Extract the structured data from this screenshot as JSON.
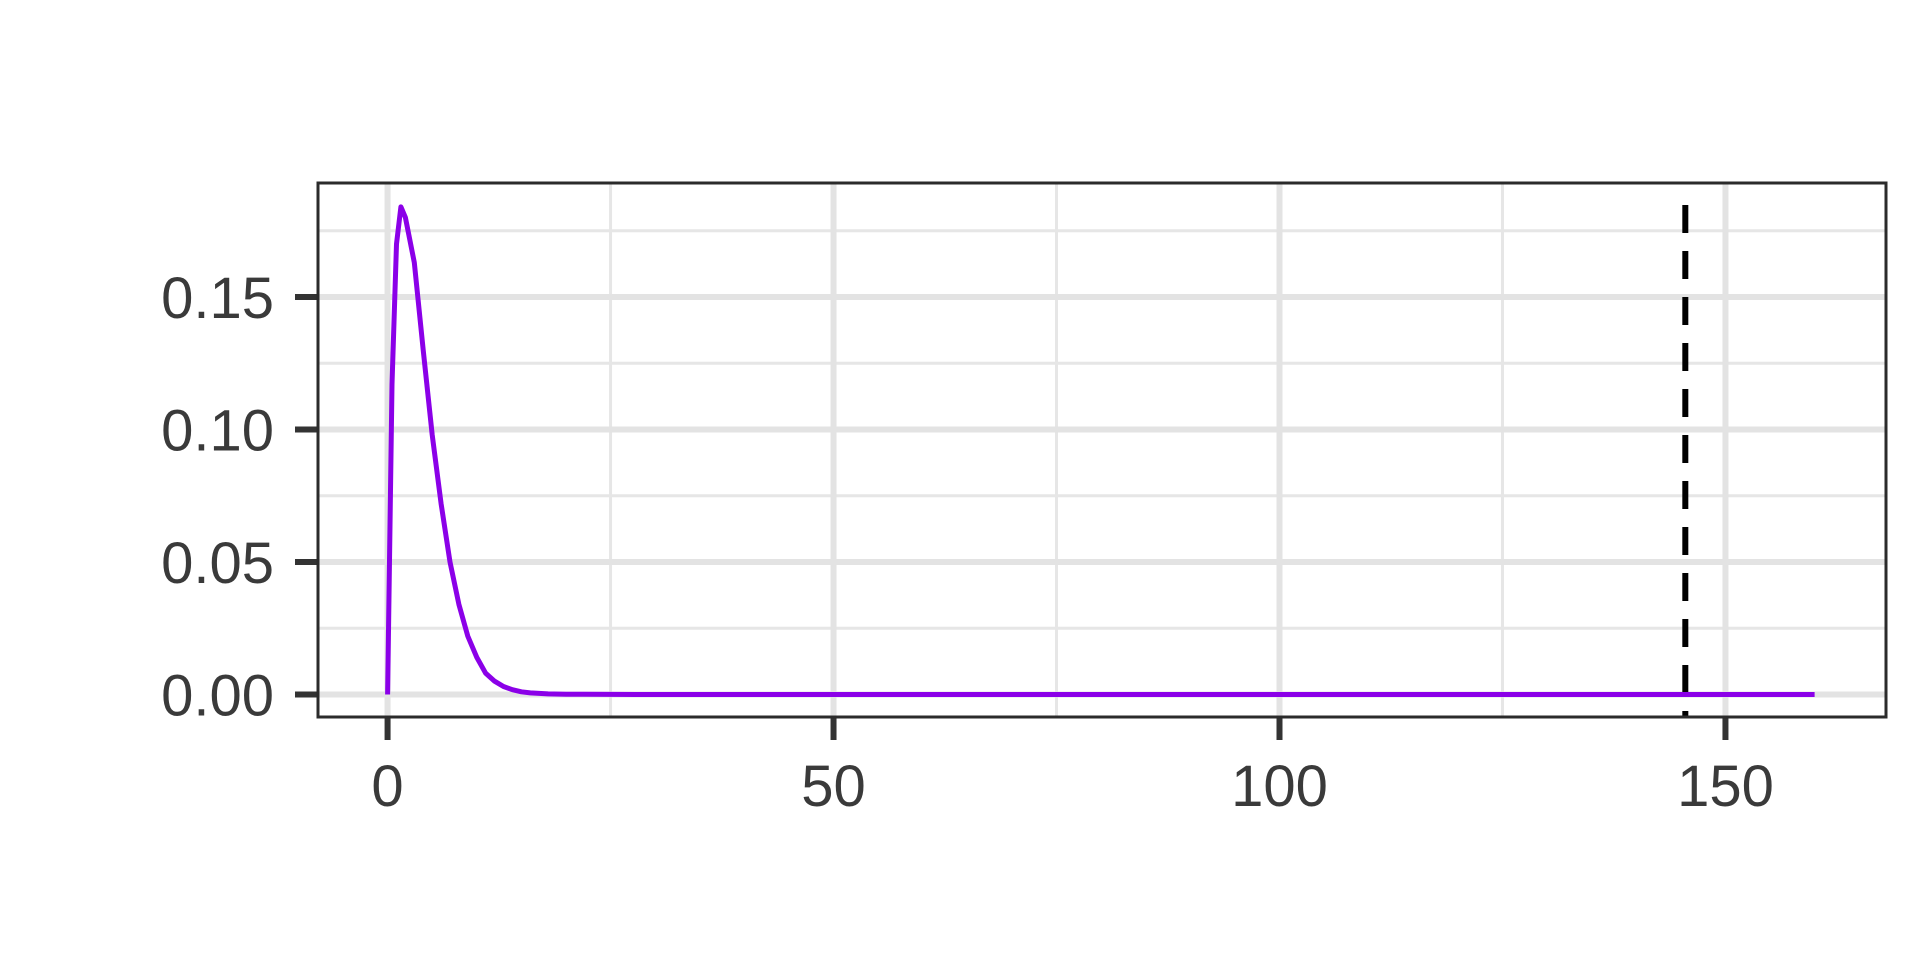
{
  "chart_data": {
    "type": "line",
    "title": "",
    "xlabel": "",
    "ylabel": "",
    "xlim": [
      -7.8,
      168
    ],
    "ylim": [
      -0.0085,
      0.193
    ],
    "x_ticks": [
      0,
      50,
      100,
      150
    ],
    "x_tick_labels": [
      "0",
      "50",
      "100",
      "150"
    ],
    "y_ticks": [
      0,
      0.05,
      0.1,
      0.15
    ],
    "y_tick_labels": [
      "0.00",
      "0.05",
      "0.10",
      "0.15"
    ],
    "x_minor_gridlines": [
      25,
      75,
      125
    ],
    "y_minor_gridlines": [
      0.025,
      0.075,
      0.125,
      0.175
    ],
    "grid": true,
    "legend": "none",
    "series": [
      {
        "color": "#8b00e8",
        "x": [
          0,
          0.5,
          1,
          1.5,
          2,
          3,
          4,
          5,
          6,
          7,
          8,
          9,
          10,
          11,
          12,
          13,
          14,
          15,
          16,
          18,
          20,
          22,
          25,
          30,
          40,
          60,
          80,
          100,
          120,
          140,
          160
        ],
        "y": [
          0.0,
          0.117,
          0.17,
          0.184,
          0.18,
          0.163,
          0.13,
          0.098,
          0.072,
          0.05,
          0.034,
          0.022,
          0.014,
          0.008,
          0.005,
          0.003,
          0.0018,
          0.001,
          0.0006,
          0.0002,
          0.0001,
          5e-05,
          2e-05,
          0.0,
          0.0,
          0.0,
          0.0,
          0.0,
          0.0,
          0.0,
          0.0
        ]
      }
    ],
    "reference_lines": [
      {
        "orientation": "vertical",
        "x": 145.5,
        "style": "dashed",
        "color": "#000000"
      }
    ]
  }
}
